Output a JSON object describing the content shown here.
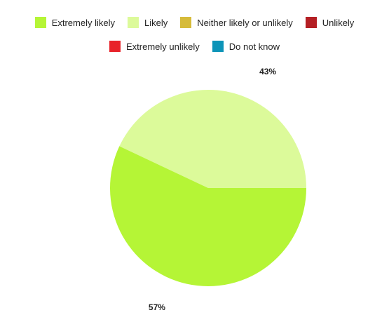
{
  "chart_data": {
    "type": "pie",
    "legend_placement": "top",
    "legend": [
      {
        "label": "Extremely likely",
        "color": "#b5f536"
      },
      {
        "label": "Likely",
        "color": "#dcfa9a"
      },
      {
        "label": "Neither likely or unlikely",
        "color": "#d6bb3a"
      },
      {
        "label": "Unlikely",
        "color": "#b41f24"
      },
      {
        "label": "Extremely unlikely",
        "color": "#e8232a"
      },
      {
        "label": "Do not know",
        "color": "#0d94b8"
      }
    ],
    "slices": [
      {
        "label": "Likely",
        "value": 43,
        "display": "43%",
        "color": "#dcfa9a"
      },
      {
        "label": "Extremely likely",
        "value": 57,
        "display": "57%",
        "color": "#b5f536"
      }
    ]
  }
}
